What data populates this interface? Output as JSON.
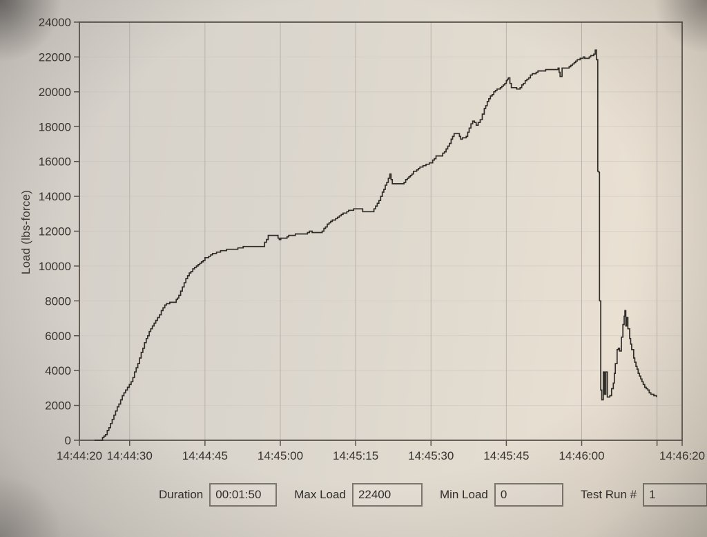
{
  "status_bar": {
    "fields": [
      {
        "label": "Duration",
        "value": "00:01:50"
      },
      {
        "label": "Max Load",
        "value": "22400"
      },
      {
        "label": "Min Load",
        "value": "0"
      },
      {
        "label": "Test Run #",
        "value": "1"
      }
    ]
  },
  "colors": {
    "line": "#2f2c27",
    "axis": "#57524c",
    "grid_vertical": "#b3aea7",
    "grid_horizontal": "#c9c4bd",
    "text": "#35322e",
    "paper": "#ddd6cb"
  },
  "chart_data": {
    "type": "line",
    "title": "",
    "xlabel": "",
    "ylabel": "Load (lbs-force)",
    "x_unit": "seconds after 14:44:20",
    "xlim": [
      0,
      120
    ],
    "ylim": [
      0,
      24000
    ],
    "grid": "both",
    "legend": "none",
    "y_ticks": [
      0,
      2000,
      4000,
      6000,
      8000,
      10000,
      12000,
      14000,
      16000,
      18000,
      20000,
      22000,
      24000
    ],
    "x_ticks": [
      {
        "t": 0,
        "label": "14:44:20"
      },
      {
        "t": 10,
        "label": "14:44:30"
      },
      {
        "t": 25,
        "label": "14:44:45"
      },
      {
        "t": 40,
        "label": "14:45:00"
      },
      {
        "t": 55,
        "label": "14:45:15"
      },
      {
        "t": 70,
        "label": "14:45:30"
      },
      {
        "t": 85,
        "label": "14:45:45"
      },
      {
        "t": 100,
        "label": "14:46:00"
      },
      {
        "t": 115,
        "label": ""
      },
      {
        "t": 120,
        "label": "14:46:20"
      }
    ],
    "grid_t": [
      10,
      25,
      40,
      55,
      70,
      85,
      100,
      115
    ],
    "series": [
      {
        "name": "Load",
        "max": 22400,
        "min": 0,
        "points": [
          [
            3,
            0
          ],
          [
            4.3,
            30
          ],
          [
            5.2,
            350
          ],
          [
            6.2,
            950
          ],
          [
            7.2,
            1650
          ],
          [
            8.2,
            2350
          ],
          [
            9.2,
            2900
          ],
          [
            10.3,
            3350
          ],
          [
            11.3,
            4150
          ],
          [
            12.3,
            5000
          ],
          [
            13.3,
            5850
          ],
          [
            14.2,
            6400
          ],
          [
            15.2,
            6850
          ],
          [
            16.3,
            7400
          ],
          [
            17,
            7750
          ],
          [
            18,
            7900
          ],
          [
            19,
            7950
          ],
          [
            19.8,
            8300
          ],
          [
            20.5,
            8800
          ],
          [
            21.2,
            9300
          ],
          [
            22.2,
            9700
          ],
          [
            23.3,
            10000
          ],
          [
            24.3,
            10250
          ],
          [
            25,
            10450
          ],
          [
            26.5,
            10700
          ],
          [
            28.5,
            10900
          ],
          [
            30.5,
            10950
          ],
          [
            32.6,
            11080
          ],
          [
            34,
            11120
          ],
          [
            36.5,
            11150
          ],
          [
            37.6,
            11750
          ],
          [
            39.3,
            11720
          ],
          [
            39.8,
            11550
          ],
          [
            41,
            11600
          ],
          [
            42,
            11780
          ],
          [
            43,
            11800
          ],
          [
            45,
            11850
          ],
          [
            45.8,
            12000
          ],
          [
            46.6,
            11900
          ],
          [
            48,
            11920
          ],
          [
            49,
            12250
          ],
          [
            49.7,
            12500
          ],
          [
            51,
            12700
          ],
          [
            52.5,
            13000
          ],
          [
            53.6,
            13180
          ],
          [
            54.6,
            13250
          ],
          [
            56,
            13240
          ],
          [
            56.4,
            13080
          ],
          [
            58.3,
            13100
          ],
          [
            59.3,
            13560
          ],
          [
            60.3,
            14200
          ],
          [
            61.2,
            14800
          ],
          [
            61.8,
            15300
          ],
          [
            62.3,
            14680
          ],
          [
            64.3,
            14720
          ],
          [
            65.3,
            15050
          ],
          [
            66.5,
            15400
          ],
          [
            67.8,
            15650
          ],
          [
            69,
            15800
          ],
          [
            70,
            15950
          ],
          [
            71,
            16300
          ],
          [
            72,
            16350
          ],
          [
            73,
            16700
          ],
          [
            74,
            17250
          ],
          [
            74.6,
            17600
          ],
          [
            75.4,
            17620
          ],
          [
            75.9,
            17300
          ],
          [
            77,
            17400
          ],
          [
            77.6,
            17950
          ],
          [
            78.3,
            18350
          ],
          [
            79,
            18100
          ],
          [
            79.8,
            18400
          ],
          [
            80.6,
            19000
          ],
          [
            81.5,
            19600
          ],
          [
            82.5,
            20000
          ],
          [
            83.8,
            20250
          ],
          [
            85,
            20600
          ],
          [
            85.4,
            20780
          ],
          [
            86,
            20250
          ],
          [
            87.4,
            20150
          ],
          [
            88.4,
            20500
          ],
          [
            89.8,
            20950
          ],
          [
            91.3,
            21200
          ],
          [
            93.2,
            21250
          ],
          [
            95.3,
            21330
          ],
          [
            95.7,
            20870
          ],
          [
            96.1,
            21330
          ],
          [
            97.5,
            21420
          ],
          [
            98.5,
            21700
          ],
          [
            99.4,
            21870
          ],
          [
            100.3,
            21960
          ],
          [
            101.2,
            21900
          ],
          [
            101.8,
            22060
          ],
          [
            102.4,
            22160
          ],
          [
            102.7,
            22400
          ],
          [
            102.95,
            21850
          ],
          [
            103.1,
            21850
          ],
          [
            103.2,
            15450
          ],
          [
            103.45,
            15350
          ],
          [
            103.55,
            8000
          ],
          [
            103.8,
            2900
          ],
          [
            104,
            2300
          ],
          [
            104.3,
            3950
          ],
          [
            104.55,
            2650
          ],
          [
            104.8,
            3900
          ],
          [
            105.1,
            2450
          ],
          [
            105.6,
            2570
          ],
          [
            106.3,
            3300
          ],
          [
            106.7,
            4400
          ],
          [
            107.05,
            5200
          ],
          [
            107.3,
            5300
          ],
          [
            107.55,
            5100
          ],
          [
            107.9,
            5900
          ],
          [
            108.2,
            6600
          ],
          [
            108.45,
            7150
          ],
          [
            108.6,
            7400
          ],
          [
            108.78,
            6550
          ],
          [
            108.95,
            7000
          ],
          [
            109.2,
            6400
          ],
          [
            109.55,
            5800
          ],
          [
            109.95,
            5200
          ],
          [
            110.35,
            4700
          ],
          [
            110.8,
            4250
          ],
          [
            111.25,
            3850
          ],
          [
            111.75,
            3500
          ],
          [
            112.25,
            3200
          ],
          [
            112.85,
            2950
          ],
          [
            113.45,
            2750
          ],
          [
            114.1,
            2600
          ],
          [
            114.9,
            2500
          ]
        ]
      }
    ]
  }
}
